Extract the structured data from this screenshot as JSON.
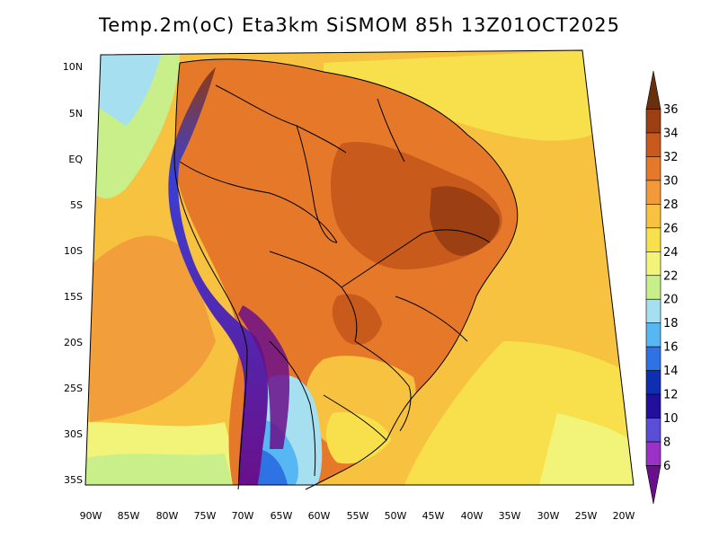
{
  "title": "Temp.2m(oC) Eta3km SiSMOM 85h 13Z01OCT2025",
  "lat_ticks": [
    "10N",
    "5N",
    "EQ",
    "5S",
    "10S",
    "15S",
    "20S",
    "25S",
    "30S",
    "35S"
  ],
  "lon_ticks": [
    "90W",
    "85W",
    "80W",
    "75W",
    "70W",
    "65W",
    "60W",
    "55W",
    "50W",
    "45W",
    "40W",
    "35W",
    "30W",
    "25W",
    "20W"
  ],
  "colorbar": {
    "labels": [
      "36",
      "34",
      "32",
      "30",
      "28",
      "26",
      "24",
      "22",
      "20",
      "18",
      "16",
      "14",
      "12",
      "10",
      "8",
      "6"
    ],
    "colors": [
      "#6a2f0c",
      "#9c3f12",
      "#c85a1c",
      "#e6782a",
      "#f29a3a",
      "#f6c23f",
      "#f7e04c",
      "#f2f47a",
      "#c9ef8a",
      "#a6dff0",
      "#57b7f2",
      "#2e73e3",
      "#0f2fb3",
      "#22109c",
      "#5a4dd6",
      "#9a32c8",
      "#6a0f8a"
    ]
  }
}
